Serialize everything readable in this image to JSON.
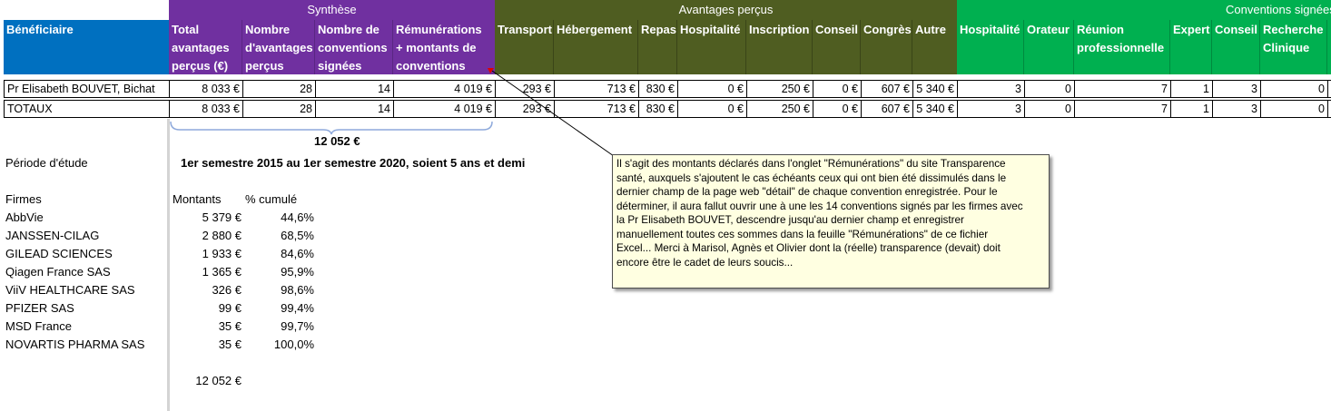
{
  "header_groups": {
    "synthese": "Synthèse",
    "avantages": "Avantages perçus",
    "conventions": "Conventions signées"
  },
  "columns": {
    "beneficiaire": "Bénéficiaire",
    "total_avantages": [
      "Total",
      "avantages",
      "perçus (€)"
    ],
    "nombre_avantages": [
      "Nombre",
      "d'avantages",
      "perçus"
    ],
    "nombre_conventions": [
      "Nombre de",
      "conventions",
      "signées"
    ],
    "remunerations": [
      "Rémunérations",
      "+ montants de",
      "conventions"
    ],
    "avantages": [
      "Transport",
      "Hébergement",
      "Repas",
      "Hospitalité",
      "Inscription",
      "Conseil",
      "Congrès",
      "Autre"
    ],
    "conventions_hospitalite": "Hospitalité",
    "conventions_orateur": "Orateur",
    "conventions_reunion": [
      "Réunion",
      "professionnelle"
    ],
    "conventions_expert": "Expert",
    "conventions_conseil": "Conseil",
    "conventions_recherche": [
      "Recherche",
      "Clinique"
    ]
  },
  "rows": [
    {
      "beneficiaire": "Pr Elisabeth BOUVET, Bichat",
      "total": "8 033 €",
      "nb_avantages": "28",
      "nb_conventions": "14",
      "remunerations": "4 019 €",
      "avantages": [
        "293 €",
        "713 €",
        "830 €",
        "0 €",
        "250 €",
        "0 €",
        "607 €",
        "5 340 €"
      ],
      "conventions": [
        "3",
        "0",
        "7",
        "1",
        "3",
        "0"
      ]
    },
    {
      "beneficiaire": "TOTAUX",
      "total": "8 033 €",
      "nb_avantages": "28",
      "nb_conventions": "14",
      "remunerations": "4 019 €",
      "avantages": [
        "293 €",
        "713 €",
        "830 €",
        "0 €",
        "250 €",
        "0 €",
        "607 €",
        "5 340 €"
      ],
      "conventions": [
        "3",
        "0",
        "7",
        "1",
        "3",
        "0"
      ]
    }
  ],
  "brace_total": "12 052 €",
  "periode": {
    "label": "Période d'étude",
    "value": "1er semestre 2015 au 1er semestre 2020, soient 5 ans et demi"
  },
  "firmes": {
    "label": "Firmes",
    "col_montants": "Montants",
    "col_cumul": "% cumulé",
    "items": [
      {
        "name": "AbbVie",
        "montant": "5 379 €",
        "cumul": "44,6%"
      },
      {
        "name": "JANSSEN-CILAG",
        "montant": "2 880 €",
        "cumul": "68,5%"
      },
      {
        "name": "GILEAD SCIENCES",
        "montant": "1 933 €",
        "cumul": "84,6%"
      },
      {
        "name": "Qiagen France SAS",
        "montant": "1 365 €",
        "cumul": "95,9%"
      },
      {
        "name": "ViiV HEALTHCARE SAS",
        "montant": "326 €",
        "cumul": "98,6%"
      },
      {
        "name": "PFIZER SAS",
        "montant": "99 €",
        "cumul": "99,4%"
      },
      {
        "name": "MSD France",
        "montant": "35 €",
        "cumul": "99,7%"
      },
      {
        "name": "NOVARTIS PHARMA SAS",
        "montant": "35 €",
        "cumul": "100,0%"
      }
    ],
    "total": "12 052 €"
  },
  "comment": {
    "lines": [
      "Il s'agit des montants déclarés dans l'onglet \"Rémunérations\" du site Transparence",
      "santé, auxquels s'ajoutent le cas échéants ceux qui ont bien été dissimulés dans le",
      "dernier champ de la page web \"détail\" de chaque convention enregistrée. Pour le",
      "déterminer, il aura fallut ouvrir une à une les 14 conventions signés par les firmes avec",
      "la Pr Elisabeth BOUVET, descendre jusqu'au dernier champ et enregistrer",
      "manuellement toutes ces sommes dans la feuille \"Rémunérations\" de ce fichier",
      "Excel... Merci à Marisol, Agnès et Olivier dont la (réelle) transparence  (devait) doit",
      "encore être le cadet de leurs soucis..."
    ]
  },
  "colors": {
    "purple": "#7030a0",
    "olive": "#4f5d21",
    "green": "#00b050",
    "blue": "#0070c0",
    "comment_bg": "#ffffe1"
  }
}
